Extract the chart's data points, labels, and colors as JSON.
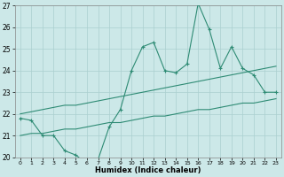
{
  "xlabel": "Humidex (Indice chaleur)",
  "x": [
    0,
    1,
    2,
    3,
    4,
    5,
    6,
    7,
    8,
    9,
    10,
    11,
    12,
    13,
    14,
    15,
    16,
    17,
    18,
    19,
    20,
    21,
    22,
    23
  ],
  "series1": [
    21.8,
    21.7,
    21.0,
    21.0,
    20.3,
    20.1,
    19.7,
    19.9,
    21.4,
    22.2,
    24.0,
    25.1,
    25.3,
    24.0,
    23.9,
    24.3,
    27.1,
    25.9,
    24.1,
    25.1,
    24.1,
    23.8,
    23.0,
    23.0
  ],
  "series2": [
    22.0,
    22.1,
    22.2,
    22.3,
    22.4,
    22.4,
    22.5,
    22.6,
    22.7,
    22.8,
    22.9,
    23.0,
    23.1,
    23.2,
    23.3,
    23.4,
    23.5,
    23.6,
    23.7,
    23.8,
    23.9,
    24.0,
    24.1,
    24.2
  ],
  "series3": [
    21.0,
    21.1,
    21.1,
    21.2,
    21.3,
    21.3,
    21.4,
    21.5,
    21.6,
    21.6,
    21.7,
    21.8,
    21.9,
    21.9,
    22.0,
    22.1,
    22.2,
    22.2,
    22.3,
    22.4,
    22.5,
    22.5,
    22.6,
    22.7
  ],
  "line_color": "#2e8b74",
  "bg_color": "#cce8e8",
  "grid_color": "#aacfcf",
  "ylim": [
    20,
    27
  ],
  "yticks": [
    20,
    21,
    22,
    23,
    24,
    25,
    26,
    27
  ],
  "xticks": [
    0,
    1,
    2,
    3,
    4,
    5,
    6,
    7,
    8,
    9,
    10,
    11,
    12,
    13,
    14,
    15,
    16,
    17,
    18,
    19,
    20,
    21,
    22,
    23
  ]
}
